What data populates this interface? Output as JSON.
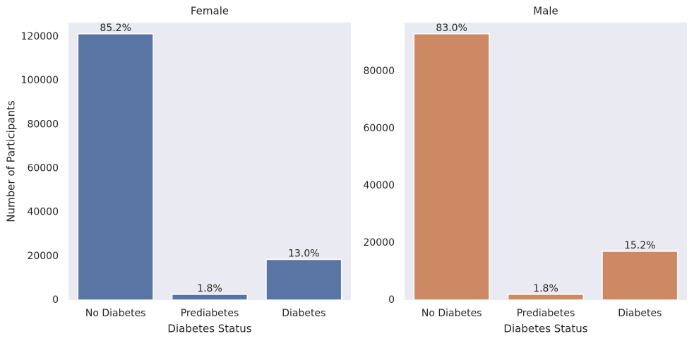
{
  "chart_data": [
    {
      "type": "bar",
      "title": "Female",
      "xlabel": "Diabetes Status",
      "ylabel": "Number of Participants",
      "categories": [
        "No Diabetes",
        "Prediabetes",
        "Diabetes"
      ],
      "values": [
        121300,
        2600,
        18500
      ],
      "value_labels": [
        "85.2%",
        "1.8%",
        "13.0%"
      ],
      "color": "#5975a4",
      "ylim": [
        0,
        126400
      ],
      "yticks": [
        0,
        20000,
        40000,
        60000,
        80000,
        100000,
        120000
      ]
    },
    {
      "type": "bar",
      "title": "Male",
      "xlabel": "Diabetes Status",
      "categories": [
        "No Diabetes",
        "Prediabetes",
        "Diabetes"
      ],
      "values": [
        93100,
        2000,
        17050
      ],
      "value_labels": [
        "83.0%",
        "1.8%",
        "15.2%"
      ],
      "color": "#cc8963",
      "ylim": [
        0,
        97000
      ],
      "yticks": [
        0,
        20000,
        40000,
        60000,
        80000
      ]
    }
  ]
}
